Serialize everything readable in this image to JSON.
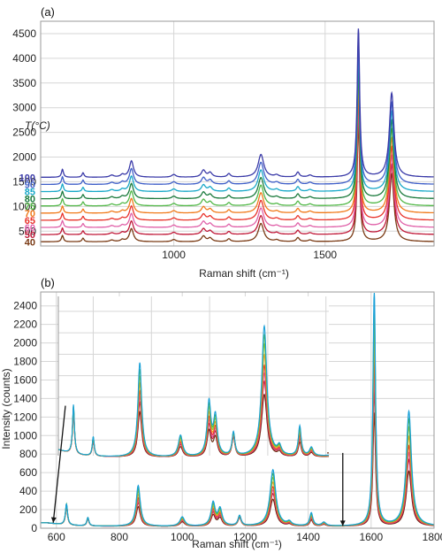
{
  "chart_data": [
    {
      "panel": "(a)",
      "type": "line",
      "xlabel": "Raman shift (cm⁻¹)",
      "ylabel": "",
      "xlim": [
        560,
        1860
      ],
      "ylim": [
        200,
        4750
      ],
      "xticks": [
        1000,
        1500
      ],
      "yticks": [
        500,
        1000,
        1500,
        2000,
        2500,
        3000,
        3500,
        4000,
        4500
      ],
      "grid": true,
      "temperature_header": "T(°C)",
      "series": [
        {
          "name": "100",
          "color": "#3a3aa8",
          "offset": 1390,
          "scale": 1.0
        },
        {
          "name": "90",
          "color": "#3f5fc8",
          "offset": 1245,
          "scale": 0.97
        },
        {
          "name": "85",
          "color": "#18a8c8",
          "offset": 1100,
          "scale": 0.95
        },
        {
          "name": "80",
          "color": "#1a7a3c",
          "offset": 955,
          "scale": 0.93
        },
        {
          "name": "75",
          "color": "#52b848",
          "offset": 810,
          "scale": 0.91
        },
        {
          "name": "70",
          "color": "#f07a1a",
          "offset": 665,
          "scale": 0.89
        },
        {
          "name": "65",
          "color": "#e8322a",
          "offset": 520,
          "scale": 0.87
        },
        {
          "name": "60",
          "color": "#e060a8",
          "offset": 375,
          "scale": 0.85
        },
        {
          "name": "50",
          "color": "#c01838",
          "offset": 230,
          "scale": 0.83
        },
        {
          "name": "40",
          "color": "#7a3a14",
          "offset": 85,
          "scale": 0.8
        }
      ],
      "peaks": [
        {
          "x": 632,
          "h": 160,
          "w": 4
        },
        {
          "x": 700,
          "h": 90,
          "w": 4
        },
        {
          "x": 795,
          "h": 40,
          "w": 8
        },
        {
          "x": 830,
          "h": 50,
          "w": 7
        },
        {
          "x": 860,
          "h": 330,
          "w": 8
        },
        {
          "x": 1000,
          "h": 55,
          "w": 8
        },
        {
          "x": 1098,
          "h": 140,
          "w": 8
        },
        {
          "x": 1120,
          "h": 90,
          "w": 8
        },
        {
          "x": 1182,
          "h": 70,
          "w": 6
        },
        {
          "x": 1288,
          "h": 460,
          "w": 11
        },
        {
          "x": 1340,
          "h": 40,
          "w": 8
        },
        {
          "x": 1410,
          "h": 100,
          "w": 6
        },
        {
          "x": 1450,
          "h": 40,
          "w": 8
        },
        {
          "x": 1610,
          "h": 3000,
          "w": 5
        },
        {
          "x": 1720,
          "h": 1700,
          "w": 9
        }
      ]
    },
    {
      "panel": "(b)",
      "type": "line",
      "xlabel": "Raman shift (cm⁻¹)",
      "ylabel": "Intensity (counts)",
      "xlim": [
        550,
        1800
      ],
      "ylim": [
        0,
        2550
      ],
      "xticks": [
        600,
        800,
        1000,
        1200,
        1400,
        1600,
        1800
      ],
      "yticks": [
        0,
        200,
        400,
        600,
        800,
        1000,
        1200,
        1400,
        1600,
        1800,
        2000,
        2200,
        2400
      ],
      "grid": true,
      "inset": {
        "xlim": [
          580,
          1510
        ],
        "ylim": [
          0,
          760
        ],
        "y_scale_counts": [
          720,
          2480
        ],
        "baseline": 740,
        "description_marks": "zoom arrows from main 580-1510 cm-1 region"
      },
      "series": [
        {
          "color": "#1aa0d8",
          "scale": 1.0
        },
        {
          "color": "#4cb848",
          "scale": 0.93
        },
        {
          "color": "#8cc63e",
          "scale": 0.86
        },
        {
          "color": "#f0a020",
          "scale": 0.78
        },
        {
          "color": "#e8322a",
          "scale": 0.7
        },
        {
          "color": "#e060a8",
          "scale": 0.64
        },
        {
          "color": "#c01838",
          "scale": 0.58
        },
        {
          "color": "#6a2a10",
          "scale": 0.48
        }
      ],
      "peaks": [
        {
          "x": 632,
          "h": 230,
          "w": 4,
          "fixed": true
        },
        {
          "x": 700,
          "h": 90,
          "w": 4,
          "fixed": true
        },
        {
          "x": 860,
          "h": 440,
          "w": 8
        },
        {
          "x": 1000,
          "h": 100,
          "w": 9
        },
        {
          "x": 1098,
          "h": 250,
          "w": 8
        },
        {
          "x": 1120,
          "h": 180,
          "w": 8
        },
        {
          "x": 1182,
          "h": 110,
          "w": 6,
          "fixed": true
        },
        {
          "x": 1288,
          "h": 610,
          "w": 11
        },
        {
          "x": 1340,
          "h": 40,
          "w": 8
        },
        {
          "x": 1410,
          "h": 140,
          "w": 6
        },
        {
          "x": 1450,
          "h": 40,
          "w": 8
        },
        {
          "x": 1610,
          "h": 2550,
          "w": 5
        },
        {
          "x": 1720,
          "h": 1240,
          "w": 10
        }
      ]
    }
  ]
}
